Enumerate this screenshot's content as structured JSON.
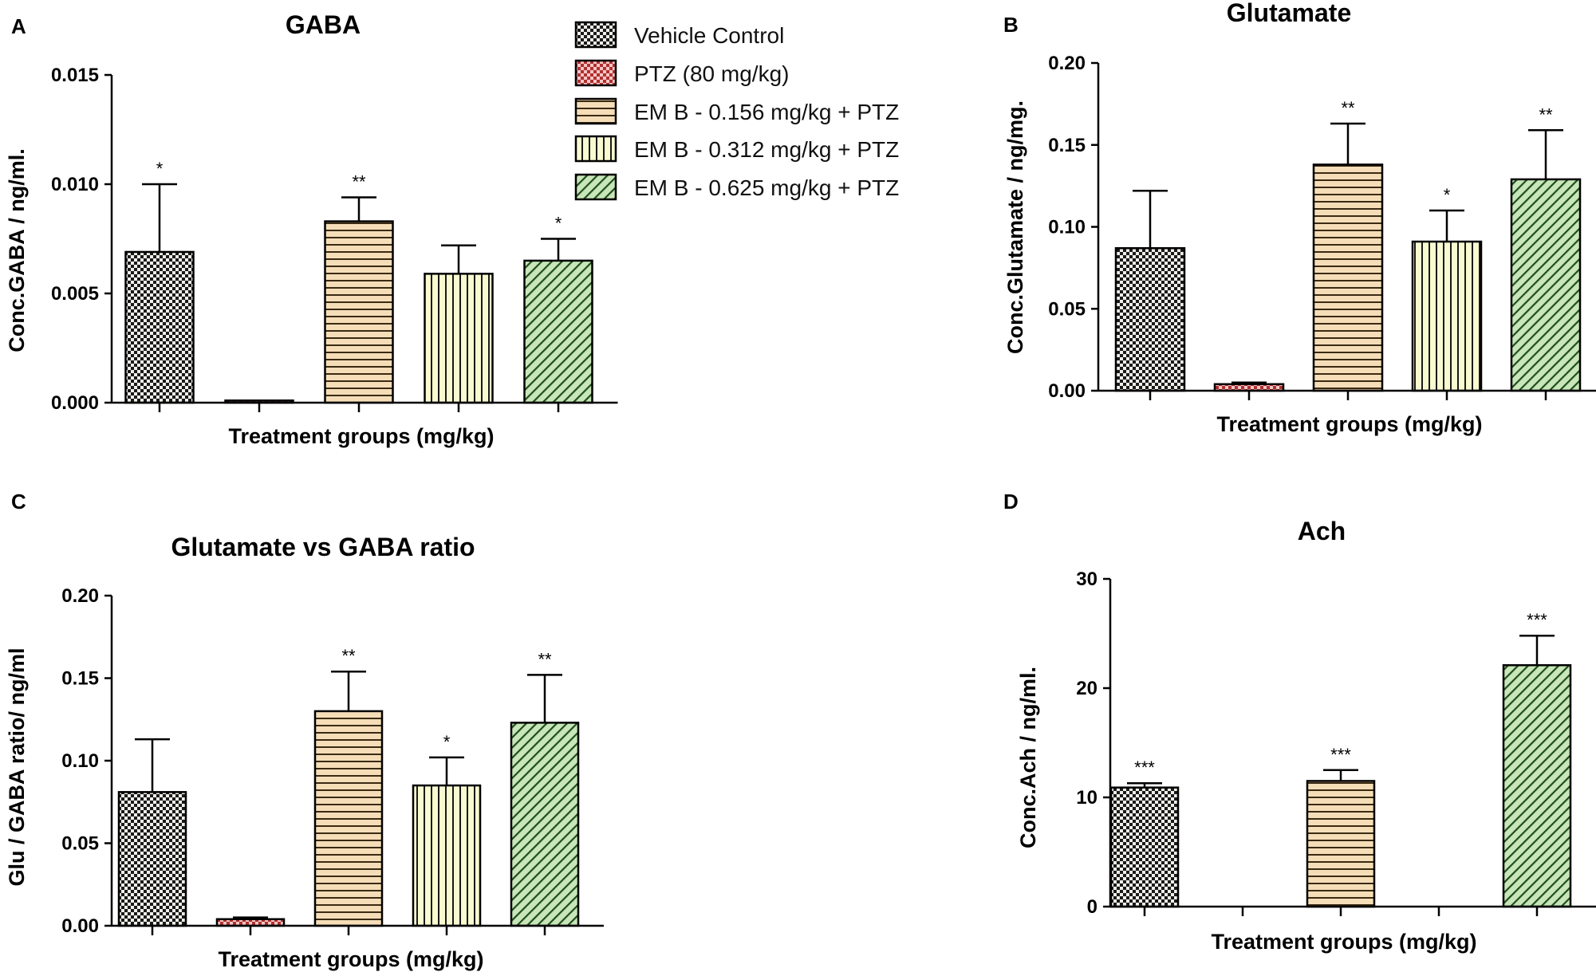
{
  "legend": {
    "items": [
      {
        "label": "Vehicle Control",
        "pattern": "check",
        "color": "#1a1a1a"
      },
      {
        "label": "PTZ (80 mg/kg)",
        "pattern": "dots",
        "color": "#d98080"
      },
      {
        "label": "EM B - 0.156 mg/kg + PTZ",
        "pattern": "hlines",
        "color": "#7a5a30"
      },
      {
        "label": "EM B - 0.312 mg/kg + PTZ",
        "pattern": "vlines",
        "color": "#1a1a1a"
      },
      {
        "label": "EM B - 0.625 mg/kg + PTZ",
        "pattern": "diag",
        "color": "#2e6b2e"
      }
    ]
  },
  "colors": {
    "check_fg": "#1a1a1a",
    "check_bg": "#f0eee8",
    "dots_fg": "#b03030",
    "dots_bg": "#f5c6c6",
    "hlines_fg": "#3a2a12",
    "hlines_bg": "#f5ddb8",
    "vlines_fg": "#1a1a1a",
    "vlines_bg": "#fafad0",
    "diag_fg": "#1f4d1f",
    "diag_bg": "#c8e6b8"
  },
  "chart_data": [
    {
      "panel": "A",
      "type": "bar",
      "title": "GABA",
      "xlabel": "Treatment groups (mg/kg)",
      "ylabel": "Conc.GABA / ng/ml.",
      "ylim": [
        0,
        0.015
      ],
      "yticks": [
        "0.000",
        "0.005",
        "0.010",
        "0.015"
      ],
      "ytick_values": [
        0,
        0.005,
        0.01,
        0.015
      ],
      "categories": [
        "Vehicle Control",
        "PTZ (80 mg/kg)",
        "EM B - 0.156 mg/kg + PTZ",
        "EM B - 0.312 mg/kg + PTZ",
        "EM B - 0.625 mg/kg + PTZ"
      ],
      "values": [
        0.0069,
        0.0001,
        0.0083,
        0.0059,
        0.0065
      ],
      "errors": [
        0.0031,
        0.0,
        0.0011,
        0.0013,
        0.001
      ],
      "significance": [
        "*",
        "",
        "**",
        "",
        "*"
      ]
    },
    {
      "panel": "B",
      "type": "bar",
      "title": "Glutamate",
      "xlabel": "Treatment groups (mg/kg)",
      "ylabel": "Conc.Glutamate / ng/mg.",
      "ylim": [
        0,
        0.2
      ],
      "yticks": [
        "0.00",
        "0.05",
        "0.10",
        "0.15",
        "0.20"
      ],
      "ytick_values": [
        0,
        0.05,
        0.1,
        0.15,
        0.2
      ],
      "categories": [
        "Vehicle Control",
        "PTZ (80 mg/kg)",
        "EM B - 0.156 mg/kg + PTZ",
        "EM B - 0.312 mg/kg + PTZ",
        "EM B - 0.625 mg/kg + PTZ"
      ],
      "values": [
        0.087,
        0.004,
        0.138,
        0.091,
        0.129
      ],
      "errors": [
        0.035,
        0.001,
        0.025,
        0.019,
        0.03
      ],
      "significance": [
        "",
        "",
        "**",
        "*",
        "**"
      ]
    },
    {
      "panel": "C",
      "type": "bar",
      "title": "Glutamate vs GABA ratio",
      "xlabel": "Treatment groups (mg/kg)",
      "ylabel": "Glu / GABA ratio/ ng/ml",
      "ylim": [
        0,
        0.2
      ],
      "yticks": [
        "0.00",
        "0.05",
        "0.10",
        "0.15",
        "0.20"
      ],
      "ytick_values": [
        0,
        0.05,
        0.1,
        0.15,
        0.2
      ],
      "categories": [
        "Vehicle Control",
        "PTZ (80 mg/kg)",
        "EM B - 0.156 mg/kg + PTZ",
        "EM B - 0.312 mg/kg + PTZ",
        "EM B - 0.625 mg/kg + PTZ"
      ],
      "values": [
        0.081,
        0.004,
        0.13,
        0.085,
        0.123
      ],
      "errors": [
        0.032,
        0.001,
        0.024,
        0.017,
        0.029
      ],
      "significance": [
        "",
        "",
        "**",
        "*",
        "**"
      ]
    },
    {
      "panel": "D",
      "type": "bar",
      "title": "Ach",
      "xlabel": "Treatment groups (mg/kg)",
      "ylabel": "Conc.Ach / ng/ml.",
      "ylim": [
        0,
        30
      ],
      "yticks": [
        "0",
        "10",
        "20",
        "30"
      ],
      "ytick_values": [
        0,
        10,
        20,
        30
      ],
      "categories": [
        "Vehicle Control",
        "PTZ (80 mg/kg)",
        "EM B - 0.156 mg/kg + PTZ",
        "EM B - 0.312 mg/kg + PTZ",
        "EM B - 0.625 mg/kg + PTZ"
      ],
      "values": [
        10.9,
        0,
        11.5,
        0,
        22.1
      ],
      "errors": [
        0.4,
        0,
        1.0,
        0,
        2.7
      ],
      "significance": [
        "***",
        "",
        "***",
        "",
        "***"
      ]
    }
  ]
}
